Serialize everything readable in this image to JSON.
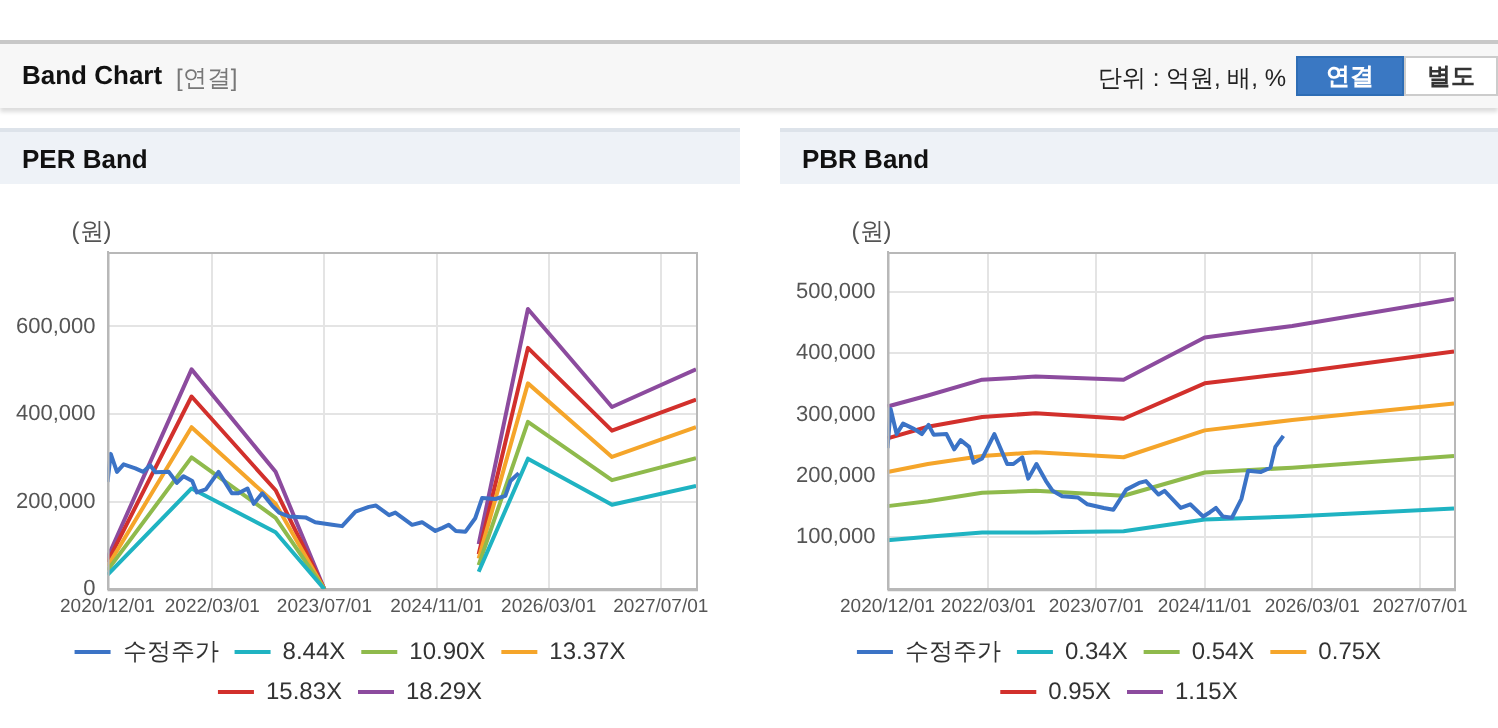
{
  "chart_data": [
    {
      "type": "other",
      "title": "Band Chart",
      "subtitle": "[연결]",
      "annotations": [
        "단위 : 억원, 배, %",
        "연결",
        "별도"
      ]
    },
    {
      "type": "line",
      "title": "PER Band",
      "ylabel": "(원)",
      "legend": "bottom",
      "grid": true,
      "xlim": [
        "2020-12-01",
        "2027-12-01"
      ],
      "xticks": [
        {
          "value": "2020-12-01",
          "label": "2020/12/01"
        },
        {
          "value": "2022-03-01",
          "label": "2022/03/01"
        },
        {
          "value": "2023-07-01",
          "label": "2023/07/01"
        },
        {
          "value": "2024-11-01",
          "label": "2024/11/01"
        },
        {
          "value": "2026-03-01",
          "label": "2026/03/01"
        },
        {
          "value": "2027-07-01",
          "label": "2027/07/01"
        }
      ],
      "ylim": [
        0,
        770000
      ],
      "yticks": [
        {
          "value": 0,
          "label": "0"
        },
        {
          "value": 200000,
          "label": "200,000"
        },
        {
          "value": 400000,
          "label": "400,000"
        },
        {
          "value": 600000,
          "label": "600,000"
        }
      ],
      "x": [
        "2020-12-01",
        "2021-12-01",
        "2022-12-01",
        "2023-07-01",
        "2024-06-01",
        "2025-05-01",
        "2025-12-01",
        "2026-12-01",
        "2027-12-01"
      ],
      "series": [
        {
          "name": "수정주가",
          "color": "#3b73c6",
          "x": [
            "2020-12-01",
            "2020-12-15",
            "2021-01-11",
            "2021-02-09",
            "2021-04-01",
            "2021-05-05",
            "2021-06-04",
            "2021-06-27",
            "2021-08-24",
            "2021-09-28",
            "2021-10-27",
            "2021-12-04",
            "2021-12-24",
            "2022-02-01",
            "2022-03-28",
            "2022-05-25",
            "2022-06-22",
            "2022-08-01",
            "2022-08-28",
            "2022-10-04",
            "2022-11-16",
            "2022-12-16",
            "2023-01-28",
            "2023-04-10",
            "2023-05-22",
            "2023-08-04",
            "2023-09-16",
            "2023-11-13",
            "2024-01-10",
            "2024-02-10",
            "2024-04-07",
            "2024-05-04",
            "2024-07-16",
            "2024-08-28",
            "2024-10-25",
            "2024-11-25",
            "2024-12-22",
            "2025-01-22",
            "2025-03-04",
            "2025-04-16",
            "2025-05-16",
            "2025-07-13",
            "2025-08-25",
            "2025-09-16",
            "2025-10-22"
          ],
          "values": [
            245000,
            309000,
            268000,
            285000,
            276000,
            268000,
            283000,
            267000,
            268000,
            243000,
            258000,
            247000,
            221000,
            228000,
            268000,
            219000,
            219000,
            230000,
            195000,
            219000,
            191000,
            175000,
            166000,
            164000,
            153000,
            147000,
            144000,
            177000,
            188000,
            191000,
            169000,
            175000,
            147000,
            153000,
            133000,
            140000,
            147000,
            133000,
            131000,
            162000,
            208000,
            206000,
            213000,
            247000,
            265000
          ]
        },
        {
          "name": "8.44X",
          "color": "#1fb3c2",
          "values": [
            33000,
            230000,
            130000,
            0,
            null,
            40000,
            298000,
            193000,
            236000
          ]
        },
        {
          "name": "10.90X",
          "color": "#8fba4c",
          "values": [
            43000,
            301000,
            163000,
            0,
            null,
            55000,
            382000,
            249000,
            299000
          ]
        },
        {
          "name": "13.37X",
          "color": "#f5a52a",
          "values": [
            52000,
            370000,
            195000,
            0,
            null,
            70000,
            470000,
            302000,
            370000
          ]
        },
        {
          "name": "15.83X",
          "color": "#d2302c",
          "values": [
            62000,
            440000,
            226000,
            0,
            null,
            80000,
            551000,
            362000,
            433000
          ]
        },
        {
          "name": "18.29X",
          "color": "#8c4b9e",
          "values": [
            72000,
            502000,
            268000,
            0,
            null,
            103000,
            640000,
            416000,
            502000
          ]
        }
      ]
    },
    {
      "type": "line",
      "title": "PBR Band",
      "ylabel": "(원)",
      "legend": "bottom",
      "grid": true,
      "xlim": [
        "2020-12-01",
        "2027-12-01"
      ],
      "xticks": [
        {
          "value": "2020-12-01",
          "label": "2020/12/01"
        },
        {
          "value": "2022-03-01",
          "label": "2022/03/01"
        },
        {
          "value": "2023-07-01",
          "label": "2023/07/01"
        },
        {
          "value": "2024-11-01",
          "label": "2024/11/01"
        },
        {
          "value": "2026-03-01",
          "label": "2026/03/01"
        },
        {
          "value": "2027-07-01",
          "label": "2027/07/01"
        }
      ],
      "ylim": [
        14000,
        566000
      ],
      "yticks": [
        {
          "value": 100000,
          "label": "100,000"
        },
        {
          "value": 200000,
          "label": "200,000"
        },
        {
          "value": 300000,
          "label": "300,000"
        },
        {
          "value": 400000,
          "label": "400,000"
        },
        {
          "value": 500000,
          "label": "500,000"
        }
      ],
      "x": [
        "2020-12-01",
        "2021-06-01",
        "2022-02-01",
        "2022-10-01",
        "2023-11-01",
        "2024-11-01",
        "2025-12-01",
        "2027-12-01"
      ],
      "series": [
        {
          "name": "수정주가",
          "color": "#3b73c6",
          "x": [
            "2020-12-01",
            "2020-12-15",
            "2021-01-11",
            "2021-02-09",
            "2021-04-01",
            "2021-05-05",
            "2021-06-04",
            "2021-06-27",
            "2021-08-24",
            "2021-09-28",
            "2021-10-27",
            "2021-12-04",
            "2021-12-24",
            "2022-02-01",
            "2022-03-28",
            "2022-05-25",
            "2022-06-22",
            "2022-08-01",
            "2022-08-28",
            "2022-10-04",
            "2022-11-16",
            "2022-12-16",
            "2023-01-28",
            "2023-04-10",
            "2023-05-22",
            "2023-08-04",
            "2023-09-16",
            "2023-11-13",
            "2024-01-10",
            "2024-02-10",
            "2024-04-07",
            "2024-05-04",
            "2024-07-16",
            "2024-08-28",
            "2024-10-25",
            "2024-11-25",
            "2024-12-22",
            "2025-01-22",
            "2025-03-04",
            "2025-04-16",
            "2025-05-16",
            "2025-07-13",
            "2025-08-25",
            "2025-09-16",
            "2025-10-22"
          ],
          "values": [
            245000,
            309000,
            268000,
            285000,
            276000,
            268000,
            283000,
            267000,
            268000,
            243000,
            258000,
            247000,
            221000,
            228000,
            268000,
            219000,
            219000,
            230000,
            195000,
            219000,
            191000,
            175000,
            166000,
            164000,
            153000,
            147000,
            144000,
            177000,
            188000,
            191000,
            169000,
            175000,
            147000,
            153000,
            133000,
            140000,
            147000,
            133000,
            131000,
            162000,
            208000,
            206000,
            213000,
            247000,
            265000
          ]
        },
        {
          "name": "0.34X",
          "color": "#1fb3c2",
          "values": [
            94000,
            100000,
            107000,
            107000,
            109000,
            128000,
            133000,
            146000
          ]
        },
        {
          "name": "0.54X",
          "color": "#8fba4c",
          "values": [
            150000,
            158000,
            172000,
            175000,
            167000,
            205000,
            213000,
            232000
          ]
        },
        {
          "name": "0.75X",
          "color": "#f5a52a",
          "values": [
            206000,
            219000,
            232000,
            238000,
            230000,
            274000,
            291000,
            318000
          ]
        },
        {
          "name": "0.95X",
          "color": "#d2302c",
          "values": [
            261000,
            280000,
            296000,
            302000,
            293000,
            351000,
            368000,
            403000
          ]
        },
        {
          "name": "1.15X",
          "color": "#8c4b9e",
          "values": [
            313000,
            331000,
            357000,
            362000,
            357000,
            426000,
            445000,
            489000
          ]
        }
      ]
    }
  ]
}
